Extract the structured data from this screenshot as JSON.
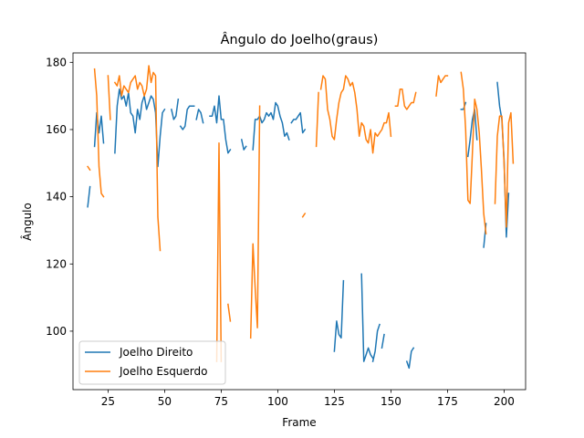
{
  "chart_data": {
    "type": "line",
    "title": "Ângulo do Joelho(graus)",
    "xlabel": "Frame",
    "ylabel": "Ângulo",
    "xlim": [
      9.5,
      209.5
    ],
    "ylim": [
      82.6,
      182.8
    ],
    "xticks": [
      25,
      50,
      75,
      100,
      125,
      150,
      175,
      200
    ],
    "yticks": [
      100,
      120,
      140,
      160,
      180
    ],
    "grid": false,
    "legend_position": "lower-left",
    "series": [
      {
        "name": "Joelho Direito",
        "color": "#1f77b4",
        "segments": [
          [
            [
              16,
              137
            ],
            [
              17,
              143
            ]
          ],
          [
            [
              19,
              155
            ],
            [
              20,
              165
            ],
            [
              21,
              159
            ],
            [
              22,
              164
            ],
            [
              23,
              156
            ]
          ],
          [
            [
              28,
              153
            ],
            [
              29,
              167
            ],
            [
              30,
              172
            ],
            [
              31,
              169
            ],
            [
              32,
              170
            ],
            [
              33,
              167
            ],
            [
              34,
              171
            ],
            [
              35,
              165
            ],
            [
              36,
              164
            ],
            [
              37,
              159
            ],
            [
              38,
              166
            ],
            [
              39,
              163
            ],
            [
              40,
              168
            ],
            [
              41,
              170
            ],
            [
              42,
              166
            ],
            [
              43,
              168
            ],
            [
              44,
              170
            ],
            [
              45,
              169
            ],
            [
              46,
              165
            ],
            [
              47,
              149
            ],
            [
              48,
              158
            ],
            [
              49,
              165
            ],
            [
              50,
              166
            ]
          ],
          [
            [
              53,
              166
            ],
            [
              54,
              163
            ],
            [
              55,
              164
            ],
            [
              56,
              169
            ]
          ],
          [
            [
              57,
              161
            ],
            [
              58,
              160
            ],
            [
              59,
              161
            ],
            [
              60,
              166
            ],
            [
              61,
              167
            ],
            [
              62,
              167
            ],
            [
              63,
              167
            ]
          ],
          [
            [
              64,
              163
            ],
            [
              65,
              166
            ],
            [
              66,
              165
            ],
            [
              67,
              162
            ]
          ],
          [
            [
              70,
              164
            ],
            [
              71,
              164
            ],
            [
              72,
              167
            ],
            [
              73,
              162
            ],
            [
              74,
              170
            ],
            [
              75,
              163
            ],
            [
              76,
              163
            ],
            [
              77,
              157
            ],
            [
              78,
              153
            ],
            [
              79,
              154
            ]
          ],
          [
            [
              84,
              157
            ],
            [
              85,
              154
            ],
            [
              86,
              155
            ]
          ],
          [
            [
              89,
              154
            ],
            [
              90,
              163
            ],
            [
              91,
              163
            ],
            [
              92,
              164
            ],
            [
              93,
              162
            ],
            [
              94,
              163
            ],
            [
              95,
              165
            ],
            [
              96,
              164
            ],
            [
              97,
              165
            ],
            [
              98,
              163
            ],
            [
              99,
              168
            ],
            [
              100,
              167
            ],
            [
              101,
              164
            ],
            [
              102,
              162
            ],
            [
              103,
              158
            ],
            [
              104,
              159
            ],
            [
              105,
              157
            ]
          ],
          [
            [
              106,
              162
            ],
            [
              107,
              163
            ],
            [
              108,
              163
            ],
            [
              109,
              164
            ],
            [
              110,
              165
            ],
            [
              111,
              159
            ],
            [
              112,
              160
            ]
          ],
          [
            [
              125,
              94
            ],
            [
              126,
              103
            ],
            [
              127,
              99
            ],
            [
              128,
              98
            ],
            [
              129,
              115
            ]
          ],
          [
            [
              137,
              117
            ],
            [
              138,
              91
            ],
            [
              139,
              93
            ],
            [
              140,
              95
            ],
            [
              141,
              93
            ],
            [
              142,
              92
            ]
          ],
          [
            [
              142,
              91
            ],
            [
              143,
              94
            ],
            [
              144,
              100
            ],
            [
              145,
              102
            ]
          ],
          [
            [
              146,
              95
            ],
            [
              147,
              99
            ]
          ],
          [
            [
              157,
              91
            ],
            [
              158,
              89
            ],
            [
              159,
              94
            ],
            [
              160,
              95
            ]
          ],
          [
            [
              181,
              166
            ],
            [
              182,
              166
            ],
            [
              183,
              168
            ]
          ],
          [
            [
              184,
              152
            ],
            [
              185,
              157
            ],
            [
              186,
              163
            ],
            [
              187,
              166
            ],
            [
              188,
              157
            ]
          ],
          [
            [
              191,
              125
            ],
            [
              192,
              132
            ]
          ],
          [
            [
              197,
              174
            ],
            [
              198,
              167
            ],
            [
              199,
              163
            ],
            [
              200,
              151
            ],
            [
              201,
              128
            ],
            [
              202,
              141
            ]
          ]
        ]
      },
      {
        "name": "Joelho Esquerdo",
        "color": "#ff7f0e",
        "segments": [
          [
            [
              16,
              149
            ],
            [
              17,
              148
            ]
          ],
          [
            [
              19,
              178
            ],
            [
              20,
              170
            ],
            [
              21,
              149
            ],
            [
              22,
              141
            ],
            [
              23,
              140
            ]
          ],
          [
            [
              25,
              176
            ],
            [
              26,
              163
            ]
          ],
          [
            [
              28,
              174
            ],
            [
              29,
              173
            ],
            [
              30,
              176
            ],
            [
              31,
              170
            ],
            [
              32,
              173
            ],
            [
              33,
              172
            ],
            [
              34,
              171
            ],
            [
              35,
              174
            ],
            [
              36,
              175
            ],
            [
              37,
              176
            ],
            [
              38,
              172
            ],
            [
              39,
              174
            ],
            [
              40,
              173
            ],
            [
              41,
              170
            ],
            [
              42,
              172
            ],
            [
              43,
              179
            ],
            [
              44,
              174
            ],
            [
              45,
              177
            ],
            [
              46,
              176
            ],
            [
              47,
              134
            ],
            [
              48,
              124
            ]
          ],
          [
            [
              73,
              91
            ],
            [
              74,
              156
            ],
            [
              75,
              91
            ]
          ],
          [
            [
              78,
              108
            ],
            [
              79,
              103
            ]
          ],
          [
            [
              88,
              98
            ],
            [
              89,
              126
            ],
            [
              90,
              113
            ],
            [
              91,
              101
            ],
            [
              92,
              167
            ]
          ],
          [
            [
              111,
              134
            ],
            [
              112,
              135
            ]
          ],
          [
            [
              117,
              155
            ],
            [
              118,
              171
            ]
          ],
          [
            [
              119,
              172
            ],
            [
              120,
              176
            ],
            [
              121,
              175
            ],
            [
              122,
              166
            ],
            [
              123,
              163
            ],
            [
              124,
              158
            ],
            [
              125,
              157
            ],
            [
              126,
              163
            ],
            [
              127,
              168
            ],
            [
              128,
              171
            ],
            [
              129,
              172
            ],
            [
              130,
              176
            ],
            [
              131,
              175
            ],
            [
              132,
              173
            ],
            [
              133,
              174
            ],
            [
              134,
              171
            ],
            [
              135,
              166
            ],
            [
              136,
              158
            ],
            [
              137,
              162
            ],
            [
              138,
              161
            ],
            [
              139,
              157
            ],
            [
              140,
              156
            ],
            [
              141,
              160
            ],
            [
              142,
              153
            ],
            [
              143,
              159
            ],
            [
              144,
              158
            ],
            [
              145,
              159
            ],
            [
              146,
              160
            ],
            [
              147,
              162
            ],
            [
              148,
              162
            ],
            [
              149,
              165
            ],
            [
              150,
              158
            ]
          ],
          [
            [
              152,
              167
            ],
            [
              153,
              167
            ],
            [
              154,
              172
            ],
            [
              155,
              172
            ],
            [
              156,
              167
            ],
            [
              157,
              166
            ],
            [
              158,
              167
            ],
            [
              159,
              168
            ],
            [
              160,
              168
            ],
            [
              161,
              171
            ]
          ],
          [
            [
              170,
              170
            ],
            [
              171,
              176
            ],
            [
              172,
              174
            ],
            [
              173,
              175
            ],
            [
              174,
              176
            ],
            [
              175,
              176
            ]
          ],
          [
            [
              181,
              177
            ],
            [
              182,
              172
            ],
            [
              183,
              160
            ],
            [
              184,
              139
            ],
            [
              185,
              138
            ],
            [
              186,
              153
            ],
            [
              187,
              169
            ],
            [
              188,
              166
            ],
            [
              189,
              159
            ],
            [
              190,
              148
            ],
            [
              191,
              135
            ],
            [
              192,
              129
            ]
          ],
          [
            [
              196,
              138
            ],
            [
              197,
              158
            ],
            [
              198,
              164
            ],
            [
              199,
              164
            ],
            [
              200,
              150
            ],
            [
              201,
              131
            ],
            [
              202,
              162
            ],
            [
              203,
              165
            ],
            [
              204,
              150
            ]
          ]
        ]
      }
    ]
  }
}
